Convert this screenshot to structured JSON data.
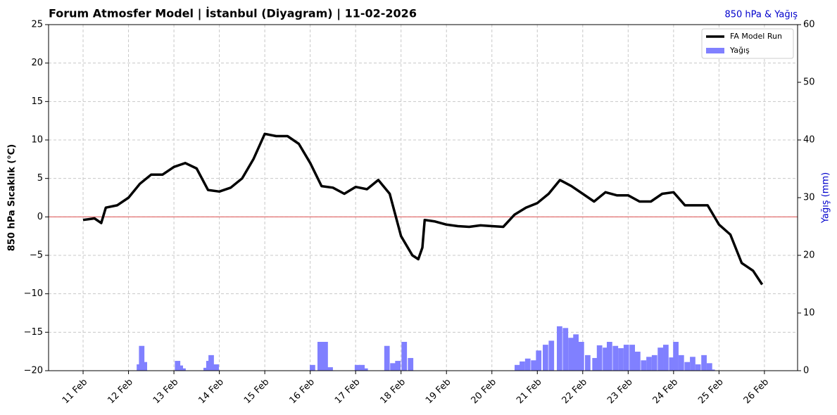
{
  "chart_data": {
    "type": "line",
    "title": "Forum Atmosfer Model | İstanbul (Diyagram) | 11-02-2026",
    "subtitle": "850 hPa & Yağış",
    "ylabel": "850 hPa Sıcaklık (°C)",
    "y2label": "Yağış (mm)",
    "xlim": [
      10.24,
      26.73
    ],
    "xticks": [
      {
        "value": 11,
        "label": "11 Feb"
      },
      {
        "value": 12,
        "label": "12 Feb"
      },
      {
        "value": 13,
        "label": "13 Feb"
      },
      {
        "value": 14,
        "label": "14 Feb"
      },
      {
        "value": 15,
        "label": "15 Feb"
      },
      {
        "value": 16,
        "label": "16 Feb"
      },
      {
        "value": 17,
        "label": "17 Feb"
      },
      {
        "value": 18,
        "label": "18 Feb"
      },
      {
        "value": 19,
        "label": "19 Feb"
      },
      {
        "value": 20,
        "label": "20 Feb"
      },
      {
        "value": 21,
        "label": "21 Feb"
      },
      {
        "value": 22,
        "label": "22 Feb"
      },
      {
        "value": 23,
        "label": "23 Feb"
      },
      {
        "value": 24,
        "label": "24 Feb"
      },
      {
        "value": 25,
        "label": "25 Feb"
      },
      {
        "value": 26,
        "label": "26 Feb"
      }
    ],
    "ylim": [
      -20,
      25
    ],
    "yticks": [
      {
        "value": -20,
        "label": "−20"
      },
      {
        "value": -15,
        "label": "−15"
      },
      {
        "value": -10,
        "label": "−10"
      },
      {
        "value": -5,
        "label": "−5"
      },
      0,
      5,
      10,
      15,
      20,
      25
    ],
    "y2lim": [
      0,
      60
    ],
    "y2ticks": [
      0,
      10,
      20,
      30,
      40,
      50,
      60
    ],
    "grid": true,
    "legend": "upper right",
    "reference_line": {
      "value": 0,
      "color": "#e06060"
    },
    "series": [
      {
        "name": "FA Model Run",
        "type": "line",
        "axis": "y",
        "color": "#000000",
        "x": [
          11,
          11.25,
          11.4,
          11.5,
          11.75,
          12,
          12.25,
          12.5,
          12.75,
          13,
          13.25,
          13.5,
          13.75,
          14,
          14.25,
          14.5,
          14.75,
          15,
          15.25,
          15.5,
          15.75,
          16,
          16.25,
          16.5,
          16.75,
          17,
          17.25,
          17.5,
          17.75,
          18,
          18.25,
          18.38,
          18.47,
          18.52,
          18.75,
          19,
          19.25,
          19.5,
          19.75,
          20,
          20.25,
          20.5,
          20.75,
          21,
          21.25,
          21.5,
          21.75,
          22,
          22.25,
          22.5,
          22.75,
          23,
          23.25,
          23.5,
          23.75,
          24,
          24.25,
          24.5,
          24.75,
          25,
          25.25,
          25.5,
          25.75,
          25.95
        ],
        "values": [
          -0.4,
          -0.2,
          -0.8,
          1.2,
          1.5,
          2.5,
          4.3,
          5.5,
          5.5,
          6.5,
          7.0,
          6.3,
          3.5,
          3.3,
          3.8,
          5.0,
          7.5,
          10.8,
          10.5,
          10.5,
          9.5,
          7.0,
          4.0,
          3.8,
          3.0,
          3.9,
          3.6,
          4.8,
          3.0,
          -2.5,
          -5.0,
          -5.5,
          -4.0,
          -0.4,
          -0.6,
          -1.0,
          -1.2,
          -1.3,
          -1.1,
          -1.2,
          -1.3,
          0.3,
          1.2,
          1.8,
          3.0,
          4.8,
          4.0,
          3.0,
          2.0,
          3.2,
          2.8,
          2.8,
          2.0,
          2.0,
          3.0,
          3.2,
          1.5,
          1.5,
          1.5,
          -1.0,
          -2.3,
          -6.0,
          -7.0,
          -8.8
        ]
      },
      {
        "name": "Yağış",
        "type": "bar",
        "axis": "y2",
        "color": "#8080ff",
        "x": [
          12.24,
          12.29,
          12.35,
          13.08,
          13.14,
          13.2,
          13.71,
          13.77,
          13.82,
          13.93,
          16.05,
          16.22,
          16.33,
          16.44,
          17.04,
          17.14,
          17.21,
          17.69,
          17.82,
          17.93,
          18.07,
          18.21,
          20.56,
          20.67,
          20.79,
          20.92,
          21.03,
          21.18,
          21.31,
          21.49,
          21.62,
          21.74,
          21.85,
          21.97,
          22.11,
          22.27,
          22.37,
          22.5,
          22.59,
          22.72,
          22.84,
          22.96,
          23.09,
          23.21,
          23.34,
          23.46,
          23.58,
          23.71,
          23.83,
          23.96,
          24.05,
          24.17,
          24.3,
          24.42,
          24.54,
          24.67,
          24.79,
          24.85
        ],
        "values": [
          1.1,
          4.3,
          1.5,
          1.7,
          0.9,
          0.4,
          0.5,
          1.7,
          2.7,
          1.1,
          1.0,
          5.0,
          5.0,
          0.6,
          1.0,
          1.0,
          0.4,
          4.3,
          1.3,
          1.7,
          5.0,
          2.2,
          1.0,
          1.6,
          2.1,
          1.8,
          3.5,
          4.5,
          5.2,
          7.7,
          7.4,
          5.7,
          6.3,
          5.0,
          2.7,
          2.2,
          4.4,
          4.0,
          5.0,
          4.3,
          3.9,
          4.5,
          4.5,
          3.3,
          1.8,
          2.4,
          2.7,
          4.0,
          4.5,
          2.3,
          5.0,
          2.7,
          1.5,
          2.4,
          1.1,
          2.7,
          1.3,
          0.2
        ]
      }
    ]
  }
}
